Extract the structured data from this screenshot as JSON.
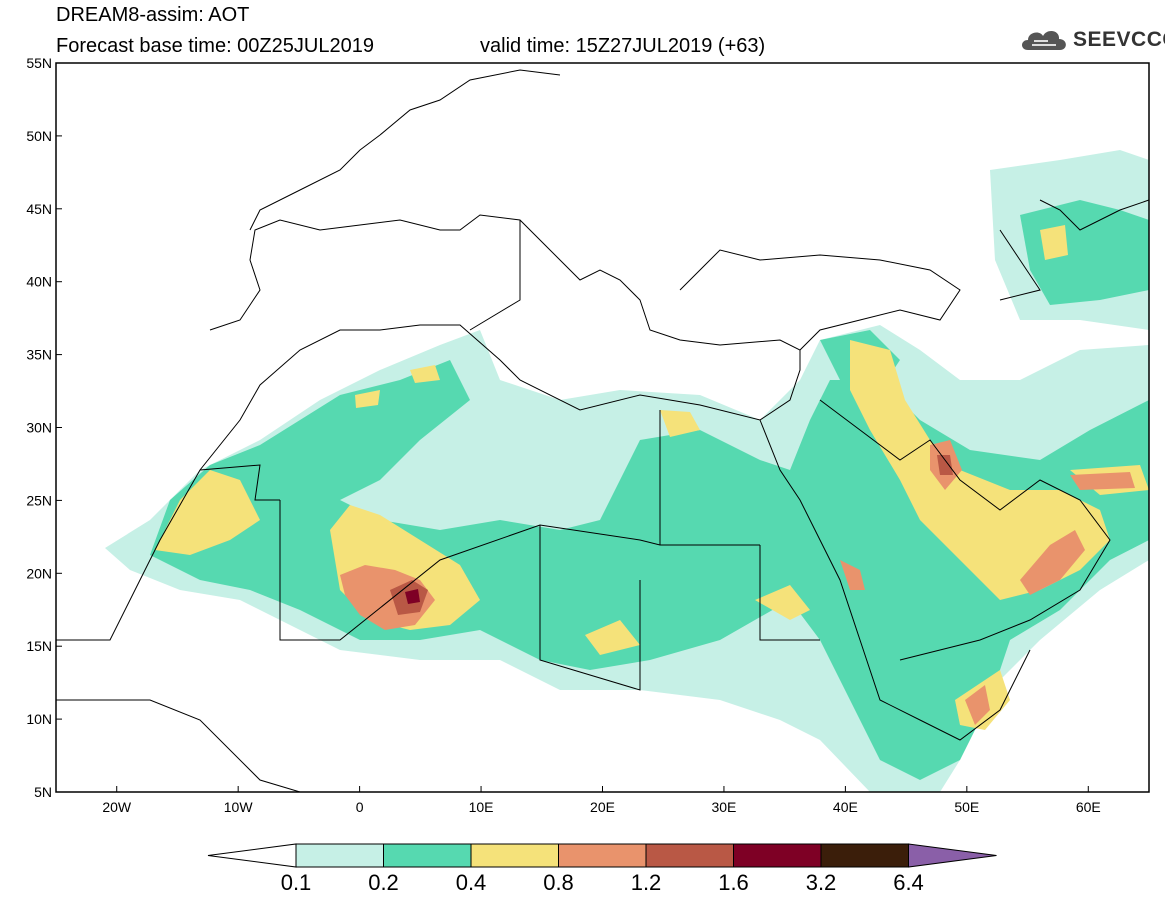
{
  "header": {
    "title_line1": "DREAM8-assim: AOT",
    "title_line2": "Forecast base time: 00Z25JUL2019",
    "valid_time": "valid time: 15Z27JUL2019 (+63)",
    "logo_text": "SEEVCCC",
    "logo_icon": "cloud-icon"
  },
  "map": {
    "projection": "lat-lon",
    "lon_range": [
      -25,
      65
    ],
    "lat_range": [
      5,
      55
    ],
    "lat_labels": [
      "55N",
      "50N",
      "45N",
      "40N",
      "35N",
      "30N",
      "25N",
      "20N",
      "15N",
      "10N",
      "5N"
    ],
    "lon_labels": [
      "20W",
      "10W",
      "0",
      "10E",
      "20E",
      "30E",
      "40E",
      "50E",
      "60E"
    ]
  },
  "legend": {
    "labels": [
      "0.1",
      "0.2",
      "0.4",
      "0.8",
      "1.2",
      "1.6",
      "3.2",
      "6.4"
    ],
    "colors": [
      "#ffffff",
      "#c6f0e6",
      "#56d9b0",
      "#f5e27a",
      "#e9936c",
      "#b95845",
      "#7e0025",
      "#3b1e0a",
      "#8a5fa8"
    ]
  }
}
